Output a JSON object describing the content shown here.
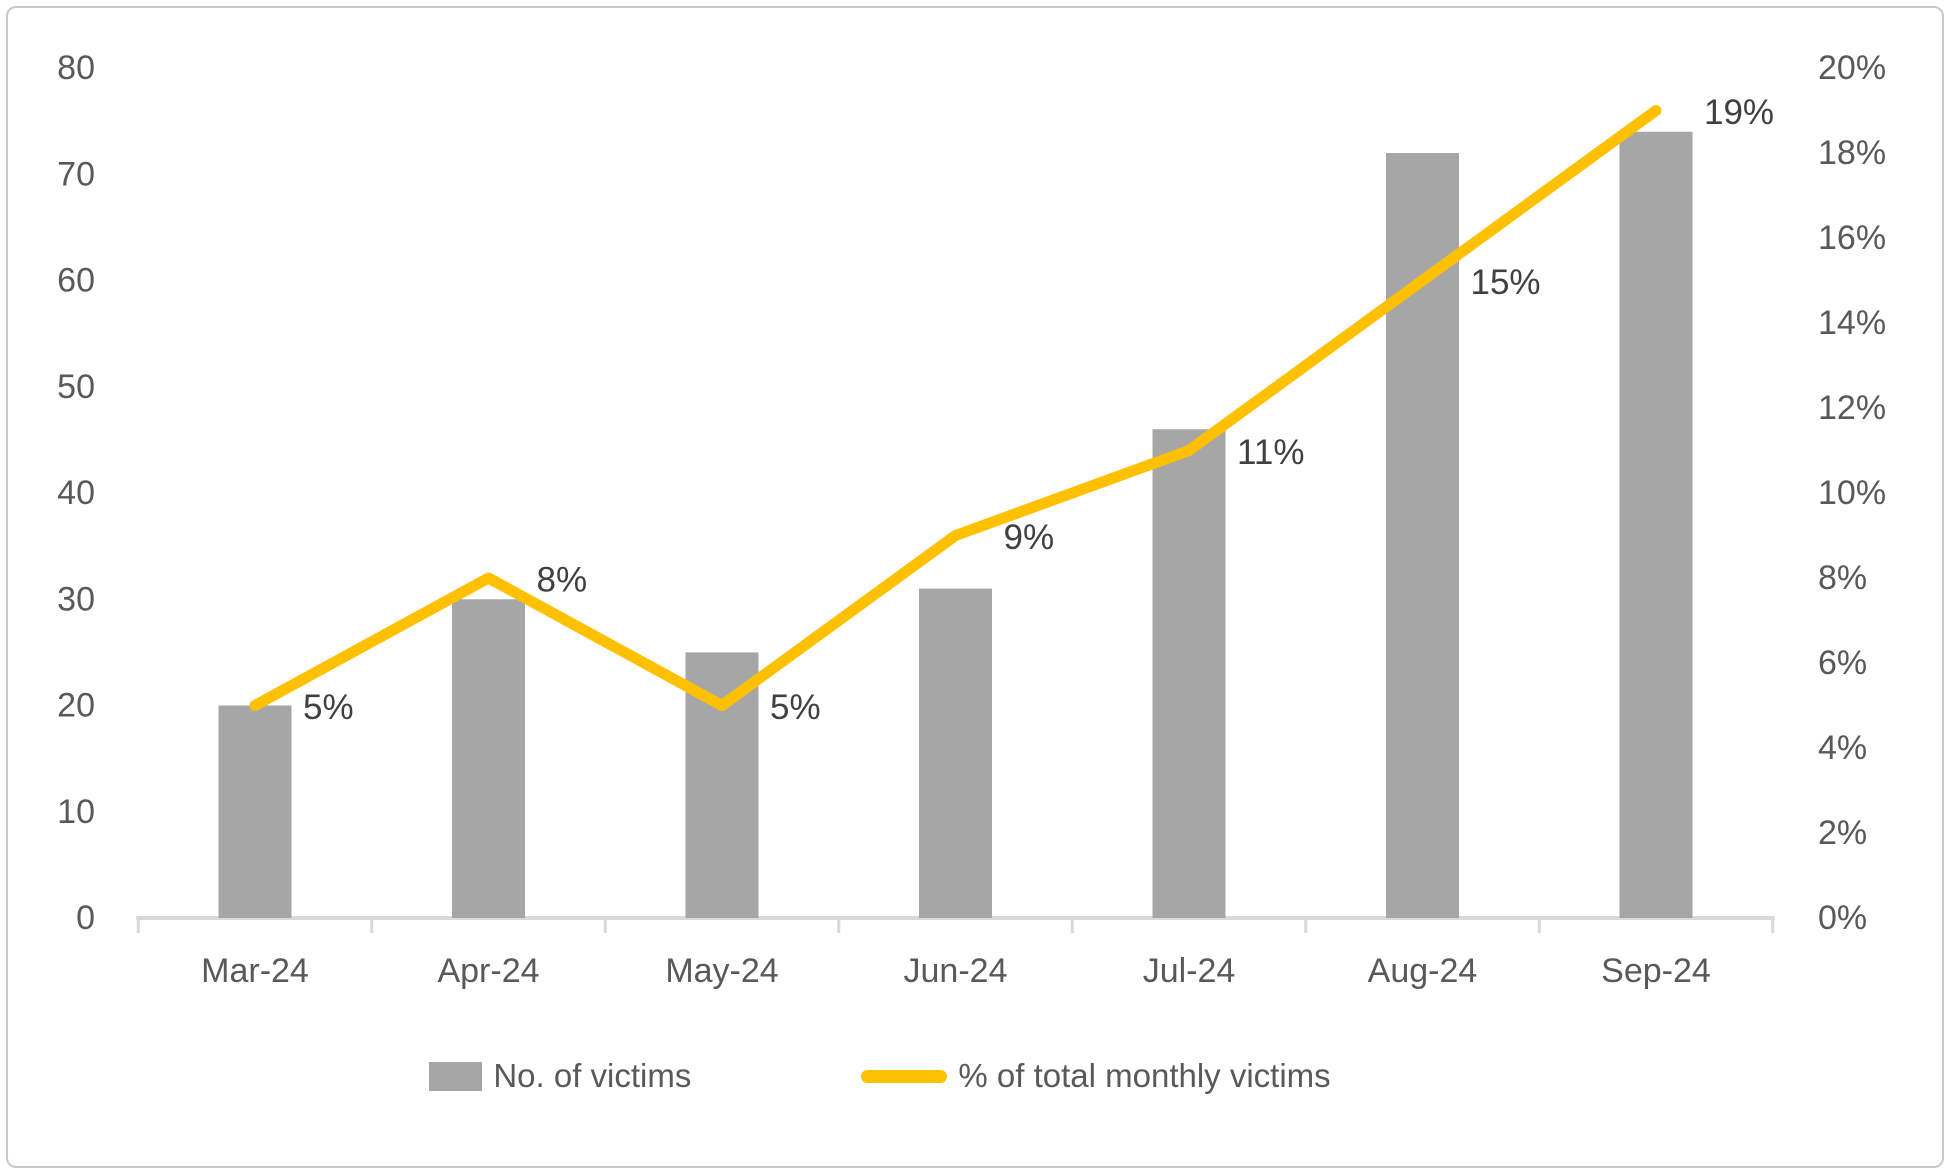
{
  "chart_data": {
    "type": "bar",
    "subtype": "combo-bar-line",
    "title": "",
    "categories": [
      "Mar-24",
      "Apr-24",
      "May-24",
      "Jun-24",
      "Jul-24",
      "Aug-24",
      "Sep-24"
    ],
    "series": [
      {
        "name": "No. of victims",
        "type": "bar",
        "axis": "left",
        "color": "#a6a6a6",
        "values": [
          20,
          30,
          25,
          31,
          46,
          72,
          74
        ]
      },
      {
        "name": "% of total monthly victims",
        "type": "line",
        "axis": "right",
        "color": "#ffc000",
        "values": [
          5,
          8,
          5,
          9,
          11,
          15,
          19
        ],
        "point_labels": [
          "5%",
          "8%",
          "5%",
          "9%",
          "11%",
          "15%",
          "19%"
        ]
      }
    ],
    "left_axis": {
      "min": 0,
      "max": 80,
      "step": 10,
      "tick_labels": [
        "0",
        "10",
        "20",
        "30",
        "40",
        "50",
        "60",
        "70",
        "80"
      ]
    },
    "right_axis": {
      "min": 0,
      "max": 20,
      "step": 2,
      "tick_labels": [
        "0%",
        "2%",
        "4%",
        "6%",
        "8%",
        "10%",
        "12%",
        "14%",
        "16%",
        "18%",
        "20%"
      ]
    },
    "grid": false,
    "legend_position": "bottom",
    "colors": {
      "bar_fill": "#a6a6a6",
      "line_stroke": "#ffc000",
      "axis_line": "#d9d9d9",
      "axis_text": "#595959",
      "data_label_text": "#404040",
      "frame_border": "#c9c9c9",
      "background": "#ffffff"
    }
  }
}
